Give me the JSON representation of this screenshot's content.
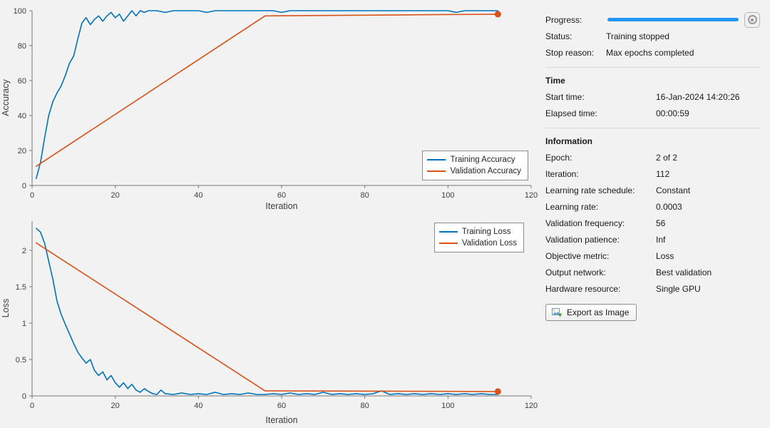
{
  "chart_data": [
    {
      "type": "line",
      "xlabel": "Iteration",
      "ylabel": "Accuracy",
      "xlim": [
        0,
        120
      ],
      "ylim": [
        0,
        100
      ],
      "xticks": [
        0,
        20,
        40,
        60,
        80,
        100,
        120
      ],
      "yticks": [
        0,
        20,
        40,
        60,
        80,
        100
      ],
      "legend_position": "bottom-right",
      "series": [
        {
          "name": "Training Accuracy",
          "color": "#0072BD",
          "points": [
            [
              1,
              4
            ],
            [
              2,
              13
            ],
            [
              3,
              27
            ],
            [
              4,
              40
            ],
            [
              5,
              48
            ],
            [
              6,
              53
            ],
            [
              7,
              57
            ],
            [
              8,
              63
            ],
            [
              9,
              70
            ],
            [
              10,
              74
            ],
            [
              11,
              84
            ],
            [
              12,
              93
            ],
            [
              13,
              96
            ],
            [
              14,
              92
            ],
            [
              15,
              95
            ],
            [
              16,
              97
            ],
            [
              17,
              94
            ],
            [
              18,
              97
            ],
            [
              19,
              99
            ],
            [
              20,
              96
            ],
            [
              21,
              98
            ],
            [
              22,
              94
            ],
            [
              23,
              97
            ],
            [
              24,
              100
            ],
            [
              25,
              97
            ],
            [
              26,
              100
            ],
            [
              27,
              99
            ],
            [
              28,
              100
            ],
            [
              30,
              100
            ],
            [
              32,
              99
            ],
            [
              34,
              100
            ],
            [
              36,
              100
            ],
            [
              38,
              100
            ],
            [
              40,
              100
            ],
            [
              42,
              99
            ],
            [
              44,
              100
            ],
            [
              46,
              100
            ],
            [
              48,
              100
            ],
            [
              50,
              100
            ],
            [
              52,
              100
            ],
            [
              54,
              100
            ],
            [
              56,
              100
            ],
            [
              58,
              100
            ],
            [
              60,
              99
            ],
            [
              62,
              100
            ],
            [
              64,
              100
            ],
            [
              66,
              100
            ],
            [
              68,
              100
            ],
            [
              70,
              100
            ],
            [
              72,
              100
            ],
            [
              74,
              100
            ],
            [
              76,
              100
            ],
            [
              78,
              100
            ],
            [
              80,
              100
            ],
            [
              82,
              100
            ],
            [
              84,
              100
            ],
            [
              86,
              100
            ],
            [
              88,
              100
            ],
            [
              90,
              100
            ],
            [
              92,
              100
            ],
            [
              94,
              100
            ],
            [
              96,
              100
            ],
            [
              98,
              100
            ],
            [
              100,
              100
            ],
            [
              102,
              99
            ],
            [
              104,
              100
            ],
            [
              106,
              100
            ],
            [
              108,
              100
            ],
            [
              110,
              100
            ],
            [
              112,
              100
            ]
          ]
        },
        {
          "name": "Validation Accuracy",
          "color": "#D95319",
          "end_marker": true,
          "points": [
            [
              1,
              11
            ],
            [
              56,
              97
            ],
            [
              112,
              98
            ]
          ]
        }
      ]
    },
    {
      "type": "line",
      "xlabel": "Iteration",
      "ylabel": "Loss",
      "xlim": [
        0,
        120
      ],
      "ylim": [
        0,
        2.4
      ],
      "xticks": [
        0,
        20,
        40,
        60,
        80,
        100,
        120
      ],
      "yticks": [
        0,
        0.5,
        1,
        1.5,
        2
      ],
      "legend_position": "top-right",
      "series": [
        {
          "name": "Training Loss",
          "color": "#0072BD",
          "points": [
            [
              1,
              2.3
            ],
            [
              2,
              2.25
            ],
            [
              3,
              2.1
            ],
            [
              4,
              1.85
            ],
            [
              5,
              1.6
            ],
            [
              6,
              1.3
            ],
            [
              7,
              1.12
            ],
            [
              8,
              0.98
            ],
            [
              9,
              0.85
            ],
            [
              10,
              0.72
            ],
            [
              11,
              0.6
            ],
            [
              12,
              0.52
            ],
            [
              13,
              0.45
            ],
            [
              14,
              0.5
            ],
            [
              15,
              0.35
            ],
            [
              16,
              0.28
            ],
            [
              17,
              0.33
            ],
            [
              18,
              0.22
            ],
            [
              19,
              0.28
            ],
            [
              20,
              0.18
            ],
            [
              21,
              0.12
            ],
            [
              22,
              0.18
            ],
            [
              23,
              0.1
            ],
            [
              24,
              0.16
            ],
            [
              25,
              0.08
            ],
            [
              26,
              0.05
            ],
            [
              27,
              0.1
            ],
            [
              28,
              0.06
            ],
            [
              29,
              0.03
            ],
            [
              30,
              0.02
            ],
            [
              31,
              0.08
            ],
            [
              32,
              0.03
            ],
            [
              34,
              0.02
            ],
            [
              36,
              0.04
            ],
            [
              38,
              0.02
            ],
            [
              40,
              0.03
            ],
            [
              42,
              0.02
            ],
            [
              44,
              0.05
            ],
            [
              46,
              0.02
            ],
            [
              48,
              0.03
            ],
            [
              50,
              0.02
            ],
            [
              52,
              0.04
            ],
            [
              54,
              0.02
            ],
            [
              56,
              0.02
            ],
            [
              58,
              0.03
            ],
            [
              60,
              0.02
            ],
            [
              62,
              0.04
            ],
            [
              64,
              0.02
            ],
            [
              66,
              0.03
            ],
            [
              68,
              0.02
            ],
            [
              70,
              0.05
            ],
            [
              72,
              0.02
            ],
            [
              74,
              0.03
            ],
            [
              76,
              0.02
            ],
            [
              78,
              0.03
            ],
            [
              80,
              0.02
            ],
            [
              82,
              0.03
            ],
            [
              84,
              0.07
            ],
            [
              86,
              0.02
            ],
            [
              88,
              0.03
            ],
            [
              90,
              0.02
            ],
            [
              92,
              0.03
            ],
            [
              94,
              0.02
            ],
            [
              96,
              0.03
            ],
            [
              98,
              0.02
            ],
            [
              100,
              0.03
            ],
            [
              102,
              0.02
            ],
            [
              104,
              0.03
            ],
            [
              106,
              0.02
            ],
            [
              108,
              0.03
            ],
            [
              110,
              0.02
            ],
            [
              112,
              0.02
            ]
          ]
        },
        {
          "name": "Validation Loss",
          "color": "#D95319",
          "end_marker": true,
          "points": [
            [
              1,
              2.1
            ],
            [
              56,
              0.07
            ],
            [
              112,
              0.06
            ]
          ]
        }
      ]
    }
  ],
  "colors": {
    "progress_bar": "#2196F3",
    "axis": "#767676"
  },
  "panel": {
    "progress": {
      "label": "Progress:",
      "percent": 100
    },
    "status": {
      "label": "Status:",
      "value": "Training stopped"
    },
    "stop_reason": {
      "label": "Stop reason:",
      "value": "Max epochs completed"
    },
    "time": {
      "header": "Time",
      "rows": [
        {
          "label": "Start time:",
          "value": "16-Jan-2024 14:20:26"
        },
        {
          "label": "Elapsed time:",
          "value": "00:00:59"
        }
      ]
    },
    "information": {
      "header": "Information",
      "rows": [
        {
          "label": "Epoch:",
          "value": "2 of 2"
        },
        {
          "label": "Iteration:",
          "value": "112"
        },
        {
          "label": "Learning rate schedule:",
          "value": "Constant"
        },
        {
          "label": "Learning rate:",
          "value": "0.0003"
        },
        {
          "label": "Validation frequency:",
          "value": "56"
        },
        {
          "label": "Validation patience:",
          "value": "Inf"
        },
        {
          "label": "Objective metric:",
          "value": "Loss"
        },
        {
          "label": "Output network:",
          "value": "Best validation"
        },
        {
          "label": "Hardware resource:",
          "value": "Single GPU"
        }
      ]
    },
    "export_button": {
      "label": "Export as Image"
    }
  }
}
